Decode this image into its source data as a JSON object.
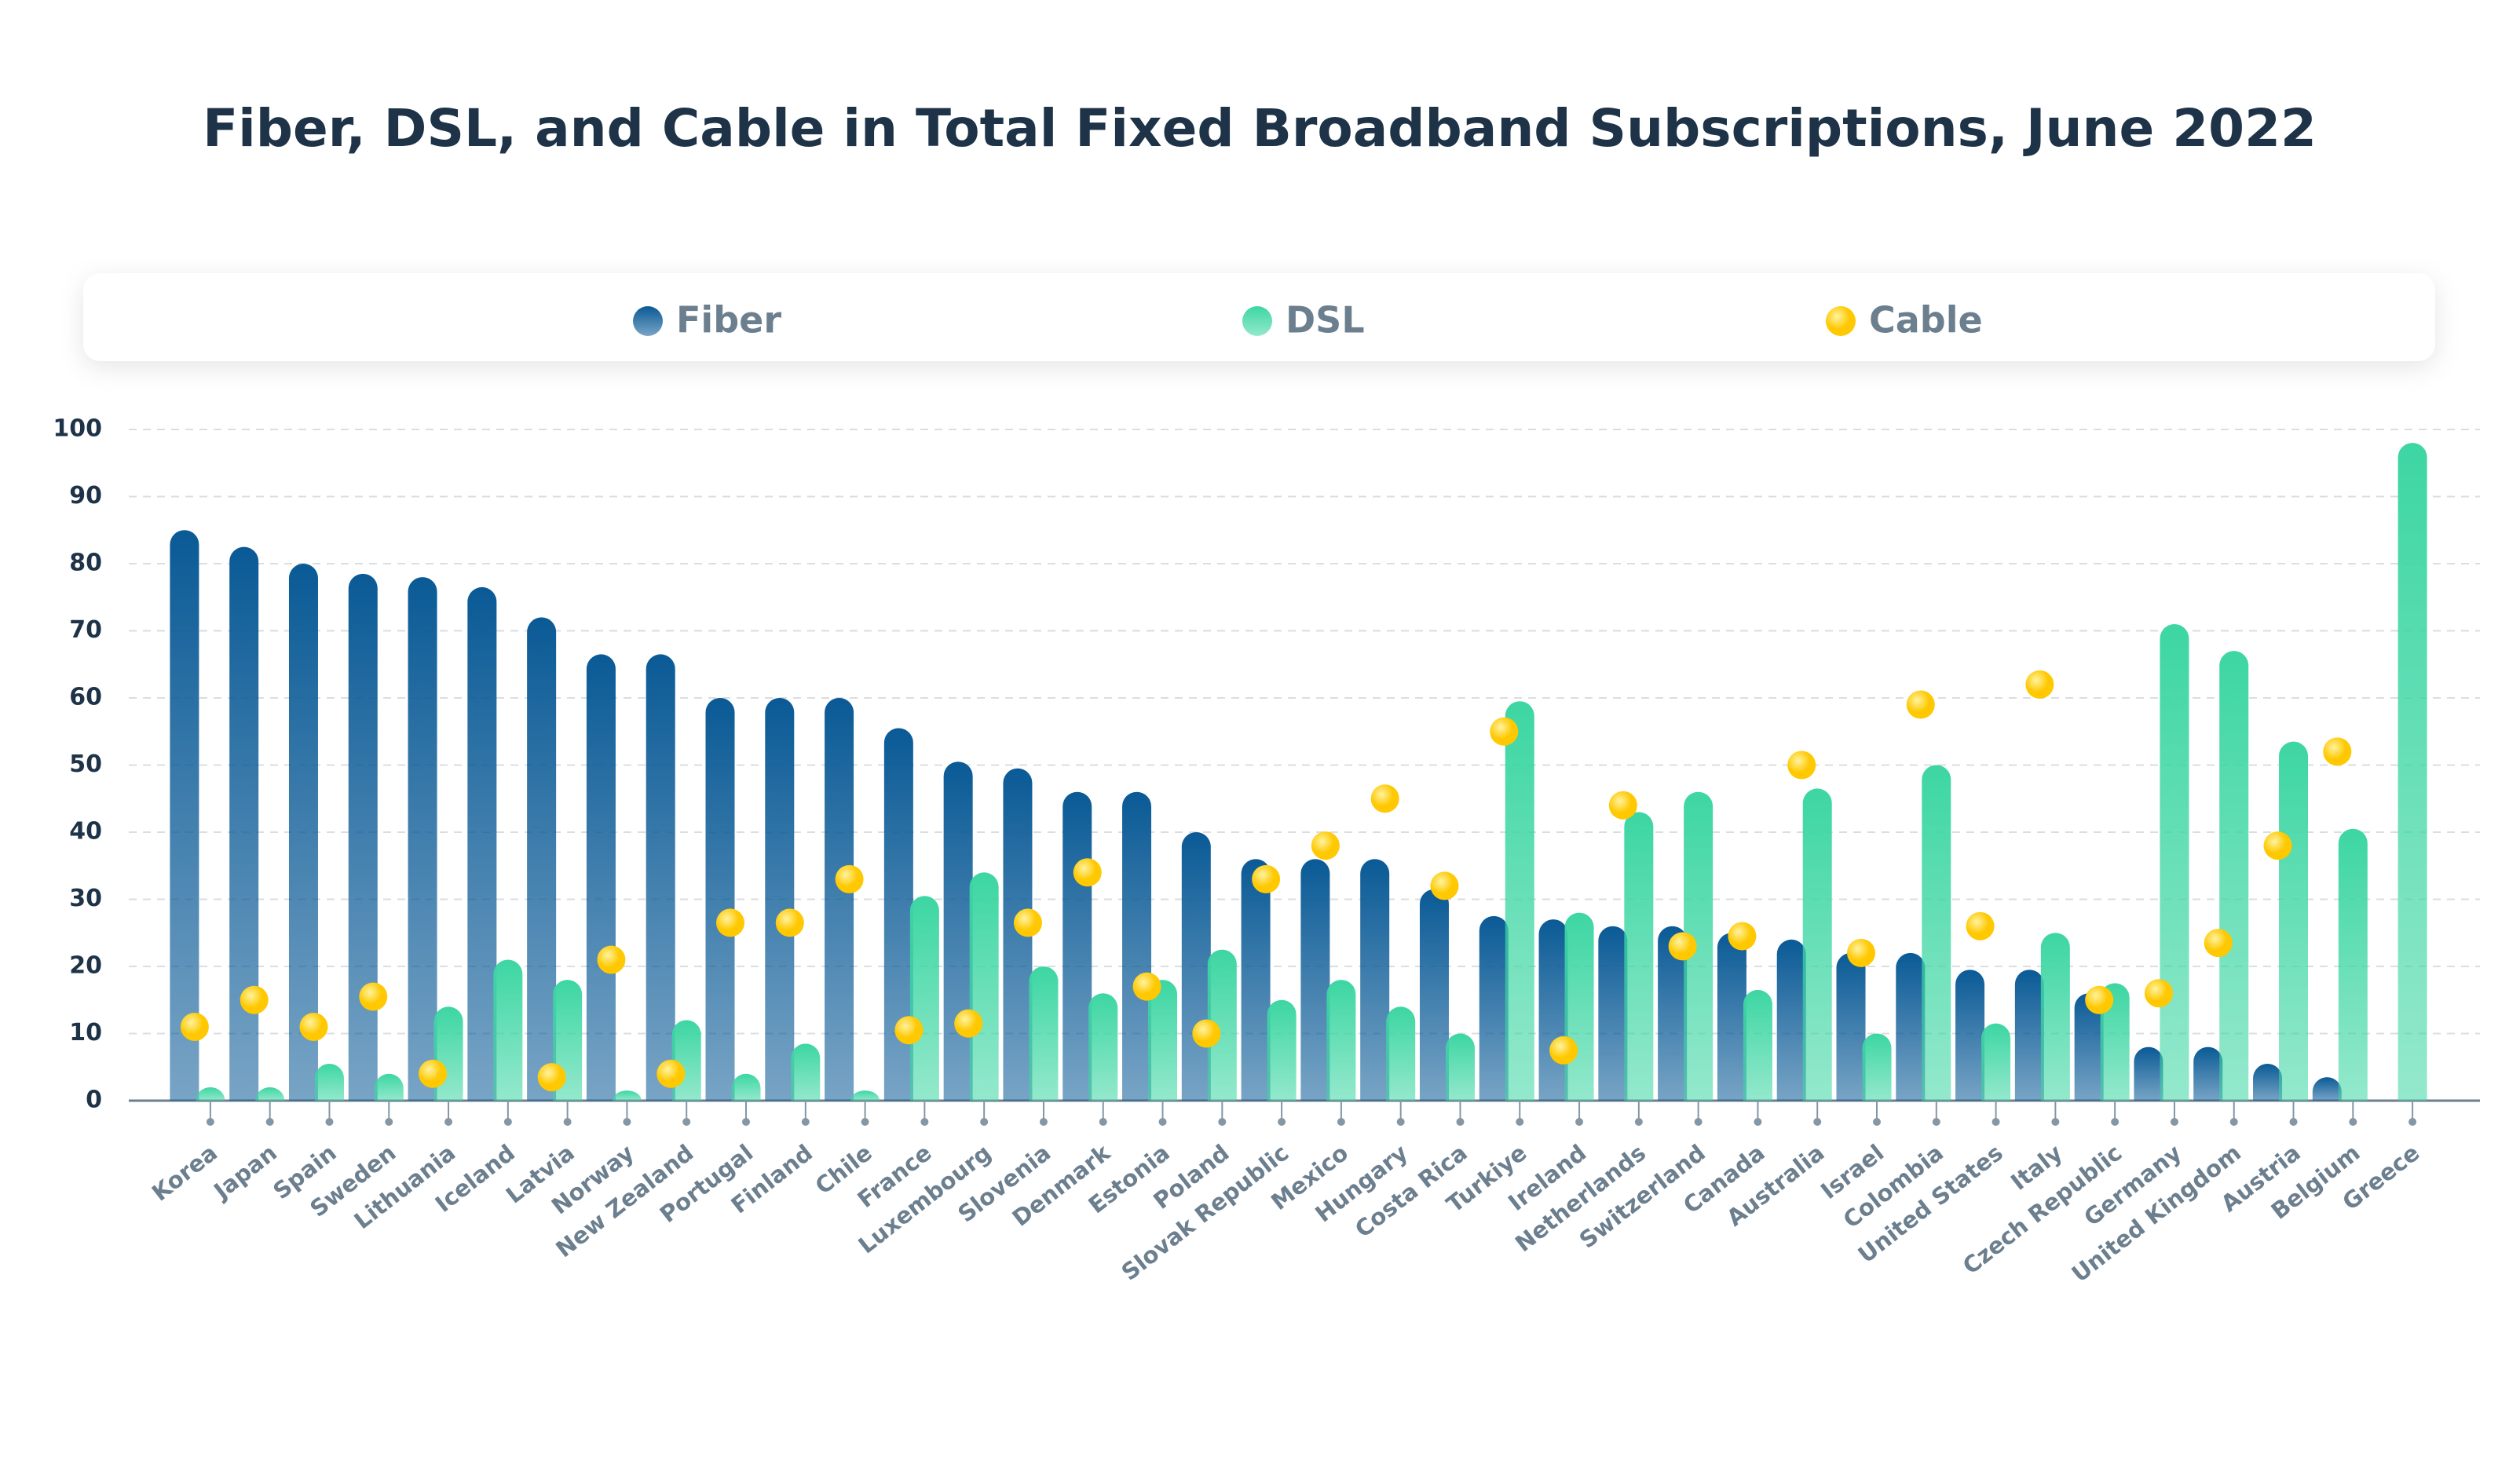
{
  "chart_data": {
    "type": "bar",
    "title": "Fiber, DSL, and Cable in Total Fixed Broadband Subscriptions, June 2022",
    "categories": [
      "Korea",
      "Japan",
      "Spain",
      "Sweden",
      "Lithuania",
      "Iceland",
      "Latvia",
      "Norway",
      "New Zealand",
      "Portugal",
      "Finland",
      "Chile",
      "France",
      "Luxembourg",
      "Slovenia",
      "Denmark",
      "Estonia",
      "Poland",
      "Slovak Republic",
      "Mexico",
      "Hungary",
      "Costa Rica",
      "Turkiye",
      "Ireland",
      "Netherlands",
      "Switzerland",
      "Canada",
      "Australia",
      "Israel",
      "Colombia",
      "United States",
      "Italy",
      "Czech Republic",
      "Germany",
      "United Kingdom",
      "Austria",
      "Belgium",
      "Greece"
    ],
    "series": [
      {
        "name": "Fiber",
        "color": "#0a5a96",
        "mark": "bar",
        "values": [
          85,
          82.5,
          80,
          78.5,
          78,
          76.5,
          72,
          66.5,
          66.5,
          60,
          60,
          60,
          55.5,
          50.5,
          49.5,
          46,
          46,
          40,
          36,
          36,
          36,
          31.5,
          27.5,
          27,
          26,
          26,
          25,
          24,
          22,
          22,
          19.5,
          19.5,
          16,
          8,
          8,
          5.5,
          3.5,
          null
        ]
      },
      {
        "name": "DSL",
        "color": "#3dd6a3",
        "mark": "bar",
        "values": [
          2,
          2,
          5.5,
          4,
          14,
          21,
          18,
          1.5,
          12,
          4,
          8.5,
          1.5,
          30.5,
          34,
          20,
          16,
          18,
          22.5,
          15,
          18,
          14,
          10,
          59.5,
          28,
          43,
          46,
          16.5,
          46.5,
          10,
          50,
          11.5,
          25,
          17.5,
          71,
          67,
          53.5,
          40.5,
          98
        ]
      },
      {
        "name": "Cable",
        "color": "#ffc800",
        "mark": "dot",
        "values": [
          11,
          15,
          11,
          15.5,
          4,
          null,
          3.5,
          21,
          4,
          26.5,
          26.5,
          33,
          10.5,
          11.5,
          26.5,
          34,
          17,
          10,
          33,
          38,
          45,
          32,
          55,
          7.5,
          44,
          23,
          24.5,
          50,
          22,
          59,
          26,
          62,
          15,
          16,
          23.5,
          38,
          52,
          null
        ]
      }
    ],
    "ylim": [
      0,
      100
    ],
    "yticks": [
      0,
      10,
      20,
      30,
      40,
      50,
      60,
      70,
      80,
      90,
      100
    ],
    "grid": true,
    "legend": "top"
  }
}
